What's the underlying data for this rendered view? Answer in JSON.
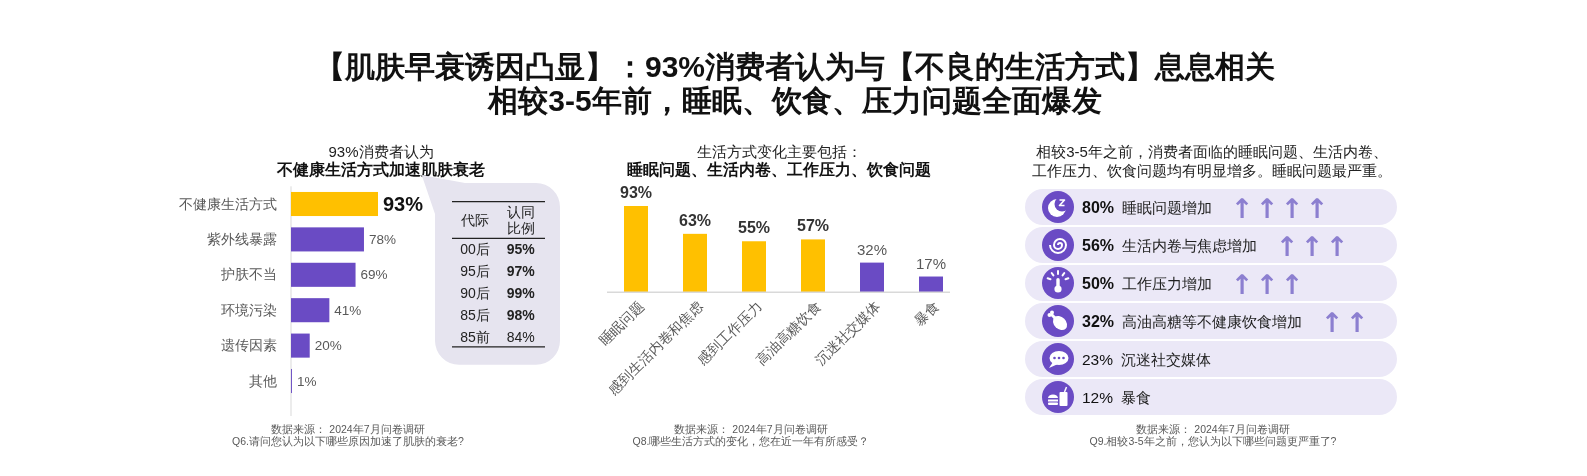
{
  "chart_data": [
    {
      "type": "other",
      "title": "【肌肤早衰诱因凸显】：93%消费者认为与【不良的生活方式】息息相关",
      "subtitle": "相较3-5年前，睡眠、饮食、压力问题全面爆发"
    },
    {
      "type": "bar",
      "orientation": "horizontal",
      "title": "93%消费者认为",
      "subtitle": "不健康生活方式加速肌肤衰老",
      "categories": [
        "不健康生活方式",
        "紫外线暴露",
        "护肤不当",
        "环境污染",
        "遗传因素",
        "其他"
      ],
      "values": [
        93,
        78,
        69,
        41,
        20,
        1
      ],
      "colors": [
        "#ffc000",
        "#6a4bc4",
        "#6a4bc4",
        "#6a4bc4",
        "#6a4bc4",
        "#6a4bc4"
      ],
      "value_labels": [
        "93%",
        "78%",
        "69%",
        "41%",
        "20%",
        "1%"
      ],
      "annotations": [
        "数据来源： 2024年7月问卷调研",
        "Q6.请问您认为以下哪些原因加速了肌肤的衰老?"
      ]
    },
    {
      "type": "other",
      "annotations": [
        "代际",
        "认同比例"
      ],
      "categories": [
        "00后",
        "95后",
        "90后",
        "85后",
        "85前"
      ],
      "values": [
        95,
        97,
        99,
        98,
        84
      ],
      "value_labels": [
        "95%",
        "97%",
        "99%",
        "98%",
        "84%"
      ]
    },
    {
      "type": "bar",
      "title": "生活方式变化主要包括：",
      "subtitle": "睡眠问题、生活内卷、工作压力、饮食问题",
      "categories": [
        "睡眠问题",
        "感到生活内卷和焦虑",
        "感到工作压力",
        "高油高糖饮食",
        "沉迷社交媒体",
        "暴食"
      ],
      "values": [
        93,
        63,
        55,
        57,
        32,
        17
      ],
      "colors": [
        "#ffc000",
        "#ffc000",
        "#ffc000",
        "#ffc000",
        "#6a4bc4",
        "#6a4bc4"
      ],
      "value_labels": [
        "93%",
        "63%",
        "55%",
        "57%",
        "32%",
        "17%"
      ],
      "annotations": [
        "数据来源： 2024年7月问卷调研",
        "Q8.哪些生活方式的变化，您在近一年有所感受？"
      ]
    },
    {
      "type": "other",
      "title": "相较3-5年之前，消费者面临的睡眠问题、生活内卷、工作压力、饮食问题均有明显增多。睡眠问题最严重。",
      "categories": [
        "睡眠问题增加",
        "生活内卷与焦虑增加",
        "工作压力增加",
        "高油高糖等不健康饮食增加",
        "沉迷社交媒体",
        "暴食"
      ],
      "values": [
        80,
        56,
        50,
        32,
        23,
        12
      ],
      "value_labels": [
        "80%",
        "56%",
        "50%",
        "32%",
        "23%",
        "12%"
      ],
      "y2_categories": [
        "↑↑↑↑",
        "↑↑↑",
        "↑↑↑",
        "↑↑",
        null,
        null
      ],
      "annotations": [
        "数据来源： 2024年7月问卷调研",
        "Q9.相较3-5年之前，您认为以下哪些问题更严重了?"
      ]
    }
  ]
}
